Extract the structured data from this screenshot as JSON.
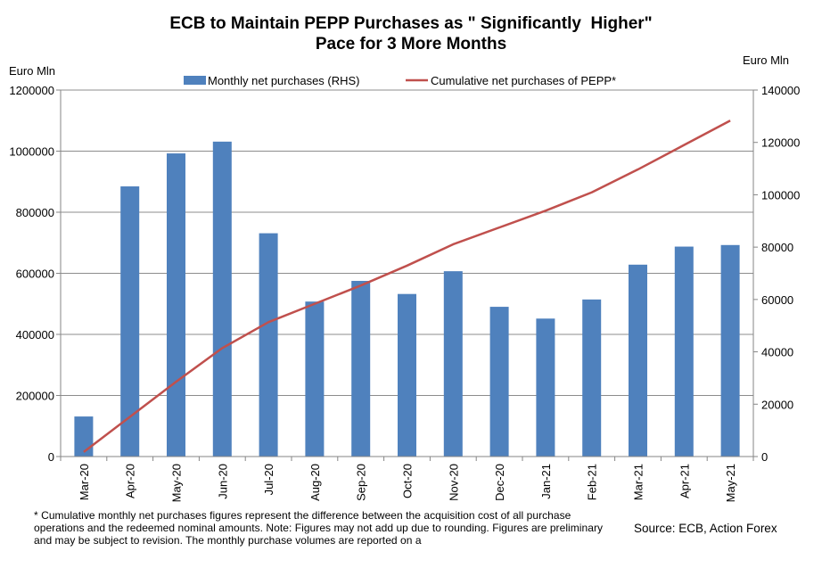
{
  "chart_data": {
    "type": "bar+line",
    "title_lines": [
      "ECB to Maintain PEPP Purchases as \" Significantly  Higher\"",
      "Pace for 3 More Months"
    ],
    "left_axis_unit": "Euro Mln",
    "right_axis_unit": "Euro Mln",
    "left_ticks": [
      "0",
      "200000",
      "400000",
      "600000",
      "800000",
      "1000000",
      "1200000"
    ],
    "right_ticks": [
      "0",
      "20000",
      "40000",
      "60000",
      "80000",
      "100000",
      "120000",
      "140000"
    ],
    "left_range": [
      0,
      1200000
    ],
    "right_range": [
      0,
      140000
    ],
    "categories": [
      "Mar-20",
      "Apr-20",
      "May-20",
      "Jun-20",
      "Jul-20",
      "Aug-20",
      "Sep-20",
      "Oct-20",
      "Nov-20",
      "Dec-20",
      "Jan-21",
      "Feb-21",
      "Mar-21",
      "Apr-21",
      "May-21"
    ],
    "series": [
      {
        "name": "Monthly net purchases (RHS)",
        "type": "bar",
        "axis": "right",
        "color": "#4f81bd",
        "values": [
          15300,
          103200,
          115800,
          120300,
          85300,
          59200,
          67100,
          62100,
          70800,
          57200,
          52700,
          60000,
          73300,
          80200,
          80800
        ]
      },
      {
        "name": "Cumulative net purchases of PEPP*",
        "type": "line",
        "axis": "left",
        "color": "#c0504d",
        "values": [
          15000,
          130000,
          245000,
          355000,
          440000,
          500000,
          560000,
          625000,
          695000,
          750000,
          805000,
          865000,
          940000,
          1020000,
          1100000
        ]
      }
    ],
    "gridlines": true
  },
  "footnote": "* Cumulative monthly net purchases figures represent the difference between the acquisition cost of all purchase operations and the redeemed nominal amounts. Note: Figures may not add up due to rounding. Figures are preliminary and may be subject to revision. The monthly purchase volumes are reported on a",
  "source": "Source: ECB, Action Forex"
}
